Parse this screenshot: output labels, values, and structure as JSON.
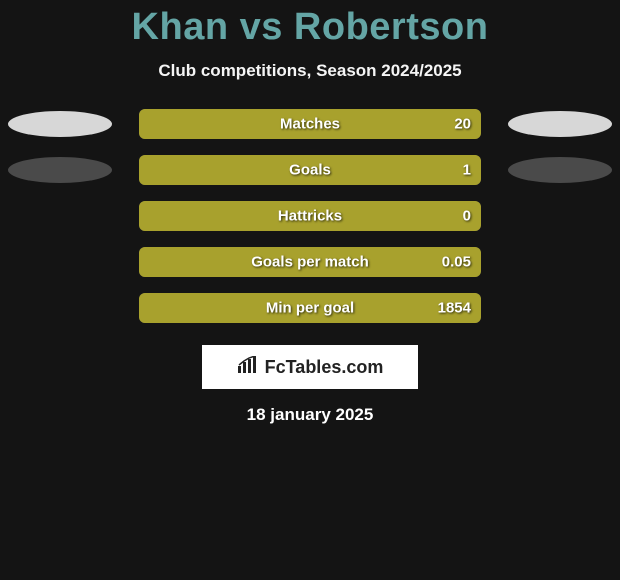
{
  "title": "Khan vs Robertson",
  "subtitle": "Club competitions, Season 2024/2025",
  "bar_color_player2": "#a8a12d",
  "bar_color_player1": "#6aa56a",
  "ellipse_bright": "#d7d7d7",
  "ellipse_dim": "#4a4a4a",
  "background": "#141414",
  "title_color": "#64a5a5",
  "rows": [
    {
      "label": "Matches",
      "p1_text": "",
      "p2_text": "20",
      "p1_fill": 0,
      "p2_fill": 100,
      "show_ellipses": true,
      "left_dim": false,
      "right_dim": false
    },
    {
      "label": "Goals",
      "p1_text": "",
      "p2_text": "1",
      "p1_fill": 0,
      "p2_fill": 100,
      "show_ellipses": true,
      "left_dim": true,
      "right_dim": true
    },
    {
      "label": "Hattricks",
      "p1_text": "",
      "p2_text": "0",
      "p1_fill": 0,
      "p2_fill": 100,
      "show_ellipses": false
    },
    {
      "label": "Goals per match",
      "p1_text": "",
      "p2_text": "0.05",
      "p1_fill": 0,
      "p2_fill": 100,
      "show_ellipses": false
    },
    {
      "label": "Min per goal",
      "p1_text": "",
      "p2_text": "1854",
      "p1_fill": 0,
      "p2_fill": 100,
      "show_ellipses": false
    }
  ],
  "logo_text": "FcTables.com",
  "date": "18 january 2025"
}
